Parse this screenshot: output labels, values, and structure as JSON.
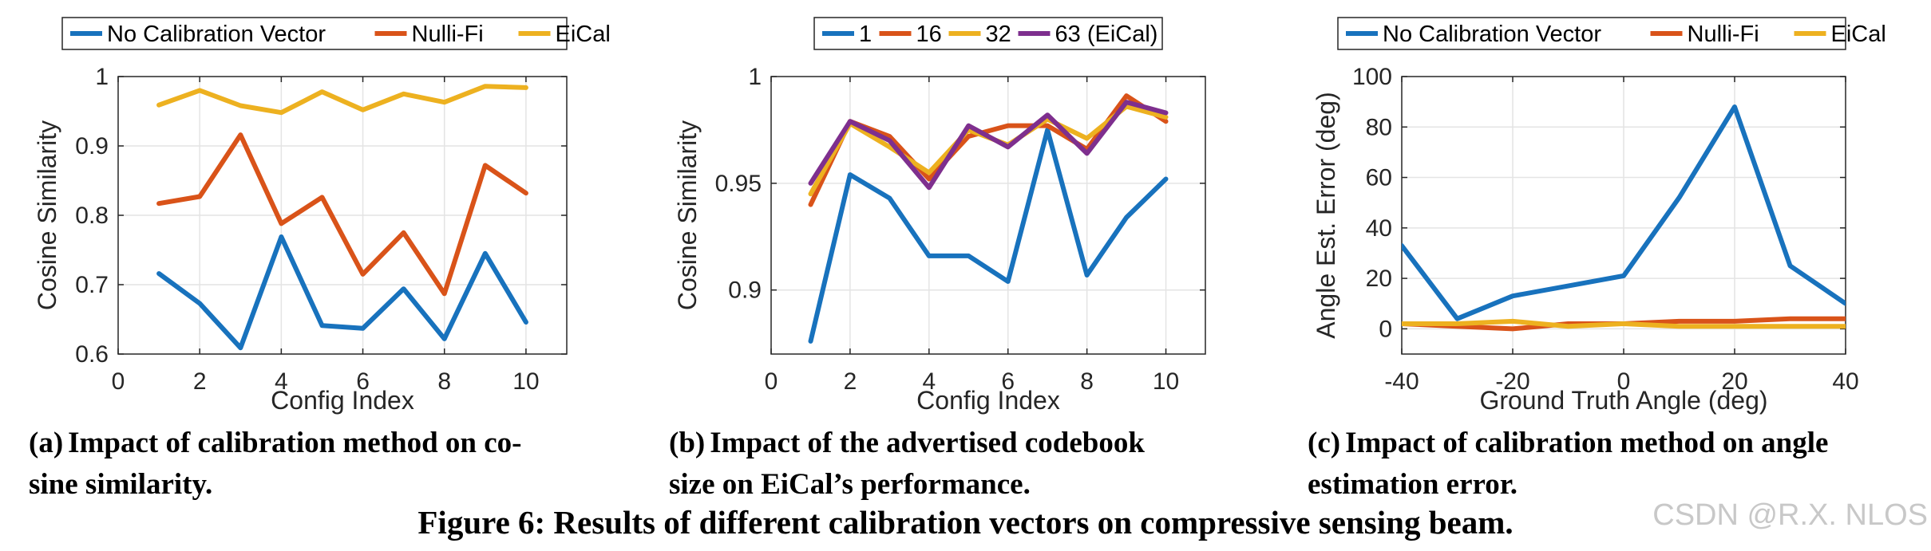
{
  "colors": {
    "blue": "#1872bd",
    "orange": "#d95319",
    "yellow": "#edb120",
    "purple": "#7e2f8e",
    "grid": "#e4e4e4"
  },
  "chart_data": [
    {
      "id": "a",
      "type": "line",
      "legend": [
        "No Calibration Vector",
        "Nulli-Fi",
        "EiCal"
      ],
      "xlabel": "Config Index",
      "ylabel": "Cosine Similarity",
      "xlim": [
        0,
        11
      ],
      "ylim": [
        0.6,
        1.0
      ],
      "xticks": [
        0,
        2,
        4,
        6,
        8,
        10
      ],
      "yticks": [
        0.6,
        0.7,
        0.8,
        0.9,
        1.0
      ],
      "ytick_labels": [
        "0.6",
        "0.7",
        "0.8",
        "0.9",
        "1"
      ],
      "x": [
        1,
        2,
        3,
        4,
        5,
        6,
        7,
        8,
        9,
        10
      ],
      "series": [
        {
          "name": "No Calibration Vector",
          "color": "blue",
          "values": [
            0.716,
            0.673,
            0.609,
            0.769,
            0.641,
            0.637,
            0.694,
            0.622,
            0.745,
            0.646
          ]
        },
        {
          "name": "Nulli-Fi",
          "color": "orange",
          "values": [
            0.817,
            0.827,
            0.916,
            0.788,
            0.826,
            0.715,
            0.775,
            0.687,
            0.872,
            0.832
          ]
        },
        {
          "name": "EiCal",
          "color": "yellow",
          "values": [
            0.959,
            0.98,
            0.958,
            0.948,
            0.978,
            0.952,
            0.975,
            0.963,
            0.986,
            0.984
          ]
        }
      ],
      "caption_label": "(a)",
      "caption_lines": [
        "Impact of calibration method on co-",
        "sine similarity."
      ]
    },
    {
      "id": "b",
      "type": "line",
      "legend": [
        "1",
        "16",
        "32",
        "63 (EiCal)"
      ],
      "xlabel": "Config Index",
      "ylabel": "Cosine Similarity",
      "xlim": [
        0,
        11
      ],
      "ylim": [
        0.87,
        1.0
      ],
      "xticks": [
        0,
        2,
        4,
        6,
        8,
        10
      ],
      "yticks": [
        0.9,
        0.95,
        1.0
      ],
      "ytick_labels": [
        "0.9",
        "0.95",
        "1"
      ],
      "x": [
        1,
        2,
        3,
        4,
        5,
        6,
        7,
        8,
        9,
        10
      ],
      "series": [
        {
          "name": "1",
          "color": "blue",
          "values": [
            0.876,
            0.954,
            0.943,
            0.916,
            0.916,
            0.904,
            0.975,
            0.907,
            0.934,
            0.952
          ]
        },
        {
          "name": "16",
          "color": "orange",
          "values": [
            0.94,
            0.979,
            0.972,
            0.952,
            0.972,
            0.977,
            0.977,
            0.966,
            0.991,
            0.979
          ]
        },
        {
          "name": "32",
          "color": "yellow",
          "values": [
            0.945,
            0.978,
            0.967,
            0.955,
            0.975,
            0.968,
            0.98,
            0.971,
            0.986,
            0.981
          ]
        },
        {
          "name": "63 (EiCal)",
          "color": "purple",
          "values": [
            0.95,
            0.979,
            0.97,
            0.948,
            0.977,
            0.967,
            0.982,
            0.964,
            0.988,
            0.983
          ]
        }
      ],
      "caption_label": "(b)",
      "caption_lines": [
        "Impact of the advertised codebook",
        "size on EiCal’s performance."
      ]
    },
    {
      "id": "c",
      "type": "line",
      "legend": [
        "No Calibration Vector",
        "Nulli-Fi",
        "EiCal"
      ],
      "xlabel": "Ground Truth Angle (deg)",
      "ylabel": "Angle Est. Error (deg)",
      "xlim": [
        -40,
        40
      ],
      "ylim": [
        -10,
        100
      ],
      "xticks": [
        -40,
        -20,
        0,
        20,
        40
      ],
      "yticks": [
        0,
        20,
        40,
        60,
        80,
        100
      ],
      "ytick_labels": [
        "0",
        "20",
        "40",
        "60",
        "80",
        "100"
      ],
      "x": [
        -40,
        -30,
        -20,
        -10,
        0,
        10,
        20,
        30,
        40
      ],
      "series": [
        {
          "name": "No Calibration Vector",
          "color": "blue",
          "values": [
            33,
            4,
            13,
            17,
            21,
            52,
            88,
            25,
            10
          ]
        },
        {
          "name": "Nulli-Fi",
          "color": "orange",
          "values": [
            2,
            1,
            0,
            2,
            2,
            3,
            3,
            4,
            4
          ]
        },
        {
          "name": "EiCal",
          "color": "yellow",
          "values": [
            2,
            2,
            3,
            1,
            2,
            1,
            1,
            1,
            1
          ]
        }
      ],
      "caption_label": "(c)",
      "caption_lines": [
        "Impact of calibration method on angle",
        "estimation error."
      ]
    }
  ],
  "figure_caption": "Figure 6: Results of different calibration vectors on compressive sensing beam.",
  "watermark": "CSDN @R.X. NLOS"
}
